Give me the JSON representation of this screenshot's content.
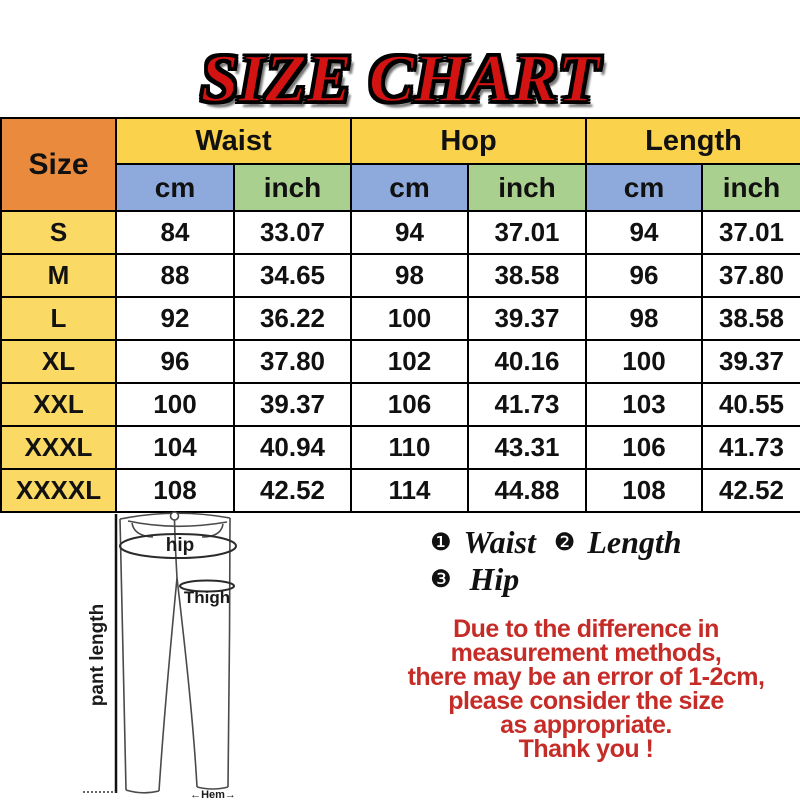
{
  "title": "SIZE CHART",
  "table": {
    "corner_label": "Size",
    "groups": [
      "Waist",
      "Hop",
      "Length"
    ],
    "units": [
      "cm",
      "inch",
      "cm",
      "inch",
      "cm",
      "inch"
    ],
    "rows": [
      {
        "size": "S",
        "values": [
          "84",
          "33.07",
          "94",
          "37.01",
          "94",
          "37.01"
        ]
      },
      {
        "size": "M",
        "values": [
          "88",
          "34.65",
          "98",
          "38.58",
          "96",
          "37.80"
        ]
      },
      {
        "size": "L",
        "values": [
          "92",
          "36.22",
          "100",
          "39.37",
          "98",
          "38.58"
        ]
      },
      {
        "size": "XL",
        "values": [
          "96",
          "37.80",
          "102",
          "40.16",
          "100",
          "39.37"
        ]
      },
      {
        "size": "XXL",
        "values": [
          "100",
          "39.37",
          "106",
          "41.73",
          "103",
          "40.55"
        ]
      },
      {
        "size": "XXXL",
        "values": [
          "104",
          "40.94",
          "110",
          "43.31",
          "106",
          "41.73"
        ]
      },
      {
        "size": "XXXXL",
        "values": [
          "108",
          "42.52",
          "114",
          "44.88",
          "108",
          "42.52"
        ]
      }
    ]
  },
  "diagram": {
    "hip_label": "hip",
    "thigh_label": "Thigh",
    "pant_length_label": "pant length",
    "hem_label": "←Hem→"
  },
  "legend": {
    "bullet1": "❶",
    "item1": "Waist",
    "bullet2": "❷",
    "item2": "Length",
    "bullet3": "❸",
    "item3": "Hip"
  },
  "note": {
    "lines": [
      "Due to the difference in",
      "measurement methods,",
      "there may be an error of 1-2cm,",
      "please consider the size",
      "as appropriate.",
      "Thank you !"
    ]
  },
  "colors": {
    "title_red": "#d31212",
    "header_orange": "#e98a3c",
    "header_yellow": "#fbd24c",
    "size_yellow": "#fad964",
    "cm_blue": "#8ea9db",
    "inch_green": "#a9d08e",
    "note_red": "#c62c27"
  }
}
